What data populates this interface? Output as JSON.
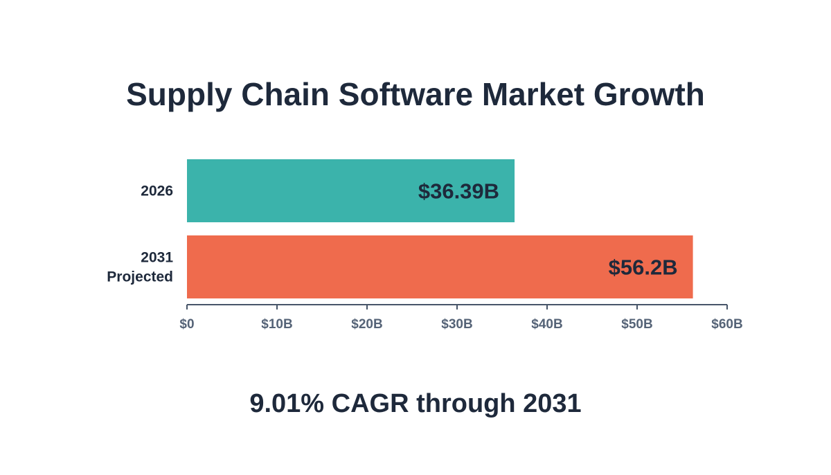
{
  "title": "Supply Chain Software Market Growth",
  "subtitle": "9.01% CAGR through 2031",
  "chart_data": {
    "type": "bar",
    "orientation": "horizontal",
    "title": "Supply Chain Software Market Growth",
    "subtitle": "9.01% CAGR through 2031",
    "categories": [
      [
        "2026"
      ],
      [
        "2031",
        "Projected"
      ]
    ],
    "values": [
      36.39,
      56.2
    ],
    "value_labels": [
      "$36.39B",
      "$56.2B"
    ],
    "colors": [
      "#3bb3ab",
      "#ef6b4d"
    ],
    "xlim": [
      0,
      60
    ],
    "xticks": [
      0,
      10,
      20,
      30,
      40,
      50,
      60
    ],
    "xtick_labels": [
      "$0",
      "$10B",
      "$20B",
      "$30B",
      "$40B",
      "$50B",
      "$60B"
    ],
    "xlabel": "",
    "ylabel": "",
    "grid": false,
    "legend": "none"
  }
}
